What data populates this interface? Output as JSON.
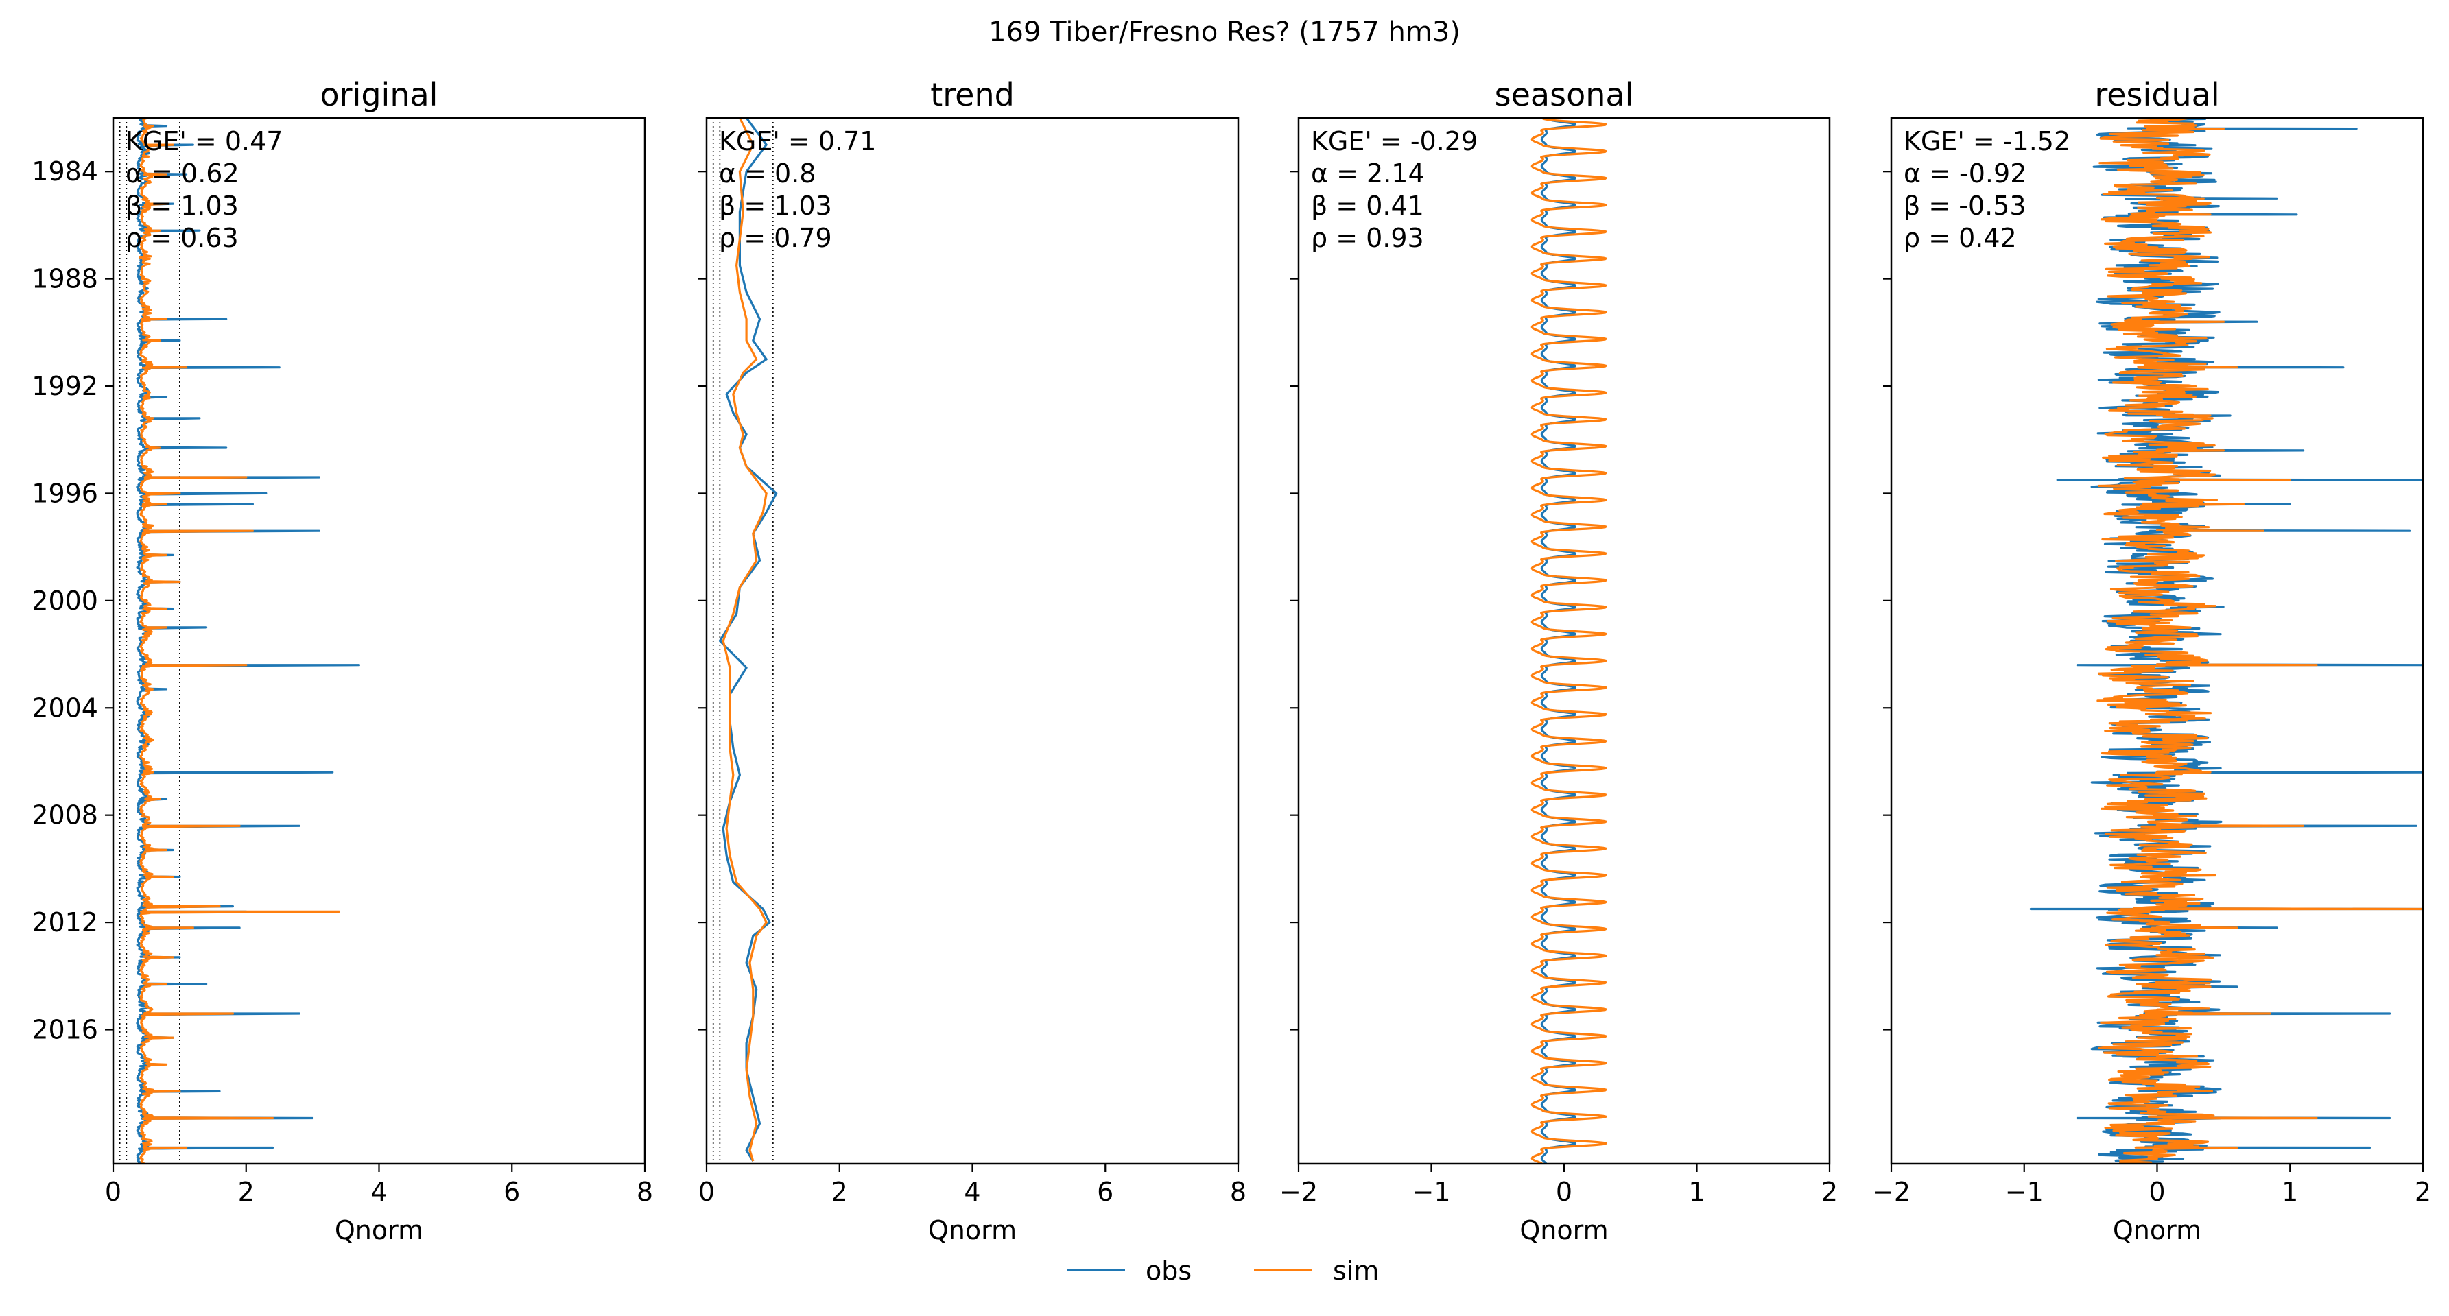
{
  "figure": {
    "suptitle": "169  Tiber/Fresno Res? (1757 hm3)",
    "legend": {
      "location": "bottom-center",
      "entries": [
        "obs",
        "sim"
      ]
    },
    "colors": {
      "obs": "#1f77b4",
      "sim": "#ff7f0e",
      "axes": "#000000"
    }
  },
  "chart_data": [
    {
      "type": "line",
      "title": "original",
      "xlabel": "Qnorm",
      "ylabel": "",
      "xlim": [
        0,
        8
      ],
      "xticks": [
        0,
        2,
        4,
        6,
        8
      ],
      "xtick_labels": [
        "0",
        "2",
        "4",
        "6",
        "8"
      ],
      "ylim": [
        "1982-01-01",
        "2020-12-31"
      ],
      "yticks": [
        1984,
        1988,
        1992,
        1996,
        2000,
        2004,
        2008,
        2012,
        2016
      ],
      "ytick_labels": [
        "1984",
        "1988",
        "1992",
        "1996",
        "2000",
        "2004",
        "2008",
        "2012",
        "2016"
      ],
      "yaxis_inverted": true,
      "reference_lines_x": [
        0.1,
        0.2,
        1.0
      ],
      "stats": [
        "KGE' = 0.47",
        "α = 0.62",
        "β = 1.03",
        "ρ = 0.63"
      ],
      "series": [
        {
          "name": "obs",
          "peaks": [
            [
              1982.3,
              0.8
            ],
            [
              1983.0,
              1.2
            ],
            [
              1984.1,
              1.1
            ],
            [
              1985.2,
              0.9
            ],
            [
              1986.2,
              1.3
            ],
            [
              1987.2,
              0.5
            ],
            [
              1989.5,
              1.7
            ],
            [
              1990.3,
              1.0
            ],
            [
              1991.3,
              2.5
            ],
            [
              1992.4,
              0.8
            ],
            [
              1993.2,
              1.3
            ],
            [
              1994.3,
              1.7
            ],
            [
              1995.4,
              3.1
            ],
            [
              1996.0,
              2.3
            ],
            [
              1996.4,
              2.1
            ],
            [
              1997.4,
              3.1
            ],
            [
              1998.3,
              0.9
            ],
            [
              1999.3,
              1.0
            ],
            [
              2000.3,
              0.9
            ],
            [
              2001.0,
              1.4
            ],
            [
              2002.4,
              3.7
            ],
            [
              2003.3,
              0.8
            ],
            [
              2004.2,
              0.5
            ],
            [
              2005.2,
              0.6
            ],
            [
              2006.4,
              3.3
            ],
            [
              2007.4,
              0.8
            ],
            [
              2008.4,
              2.8
            ],
            [
              2009.3,
              0.9
            ],
            [
              2010.3,
              1.0
            ],
            [
              2011.4,
              1.8
            ],
            [
              2011.6,
              2.0
            ],
            [
              2012.2,
              1.9
            ],
            [
              2013.3,
              1.0
            ],
            [
              2014.3,
              1.4
            ],
            [
              2015.4,
              2.8
            ],
            [
              2016.3,
              0.9
            ],
            [
              2017.3,
              0.7
            ],
            [
              2018.3,
              1.6
            ],
            [
              2019.3,
              3.0
            ],
            [
              2020.4,
              2.4
            ]
          ]
        },
        {
          "name": "sim",
          "peaks": [
            [
              1982.3,
              0.6
            ],
            [
              1983.0,
              0.9
            ],
            [
              1984.1,
              0.8
            ],
            [
              1985.2,
              0.8
            ],
            [
              1986.2,
              0.7
            ],
            [
              1987.2,
              0.4
            ],
            [
              1989.5,
              0.8
            ],
            [
              1990.3,
              0.7
            ],
            [
              1991.3,
              1.1
            ],
            [
              1992.4,
              0.5
            ],
            [
              1993.2,
              0.6
            ],
            [
              1994.3,
              0.7
            ],
            [
              1995.4,
              2.0
            ],
            [
              1996.0,
              1.0
            ],
            [
              1996.4,
              0.8
            ],
            [
              1997.4,
              2.1
            ],
            [
              1998.3,
              0.8
            ],
            [
              1999.3,
              1.0
            ],
            [
              2000.3,
              0.8
            ],
            [
              2001.0,
              0.8
            ],
            [
              2002.4,
              2.0
            ],
            [
              2003.3,
              0.6
            ],
            [
              2004.2,
              0.5
            ],
            [
              2005.2,
              0.6
            ],
            [
              2006.4,
              0.6
            ],
            [
              2007.4,
              0.7
            ],
            [
              2008.4,
              1.9
            ],
            [
              2009.3,
              0.8
            ],
            [
              2010.3,
              0.9
            ],
            [
              2011.4,
              1.6
            ],
            [
              2011.6,
              3.4
            ],
            [
              2012.2,
              1.2
            ],
            [
              2013.3,
              0.9
            ],
            [
              2014.3,
              0.8
            ],
            [
              2015.4,
              1.8
            ],
            [
              2016.3,
              0.9
            ],
            [
              2017.3,
              0.8
            ],
            [
              2018.3,
              1.0
            ],
            [
              2019.3,
              2.4
            ],
            [
              2020.4,
              1.1
            ]
          ]
        }
      ]
    },
    {
      "type": "line",
      "title": "trend",
      "xlabel": "Qnorm",
      "ylabel": "",
      "xlim": [
        0,
        8
      ],
      "xticks": [
        0,
        2,
        4,
        6,
        8
      ],
      "xtick_labels": [
        "0",
        "2",
        "4",
        "6",
        "8"
      ],
      "ylim": [
        "1982-01-01",
        "2020-12-31"
      ],
      "yaxis_inverted": true,
      "reference_lines_x": [
        0.1,
        0.2,
        1.0
      ],
      "stats": [
        "KGE' = 0.71",
        "α = 0.8",
        "β = 1.03",
        "ρ = 0.79"
      ],
      "series": [
        {
          "name": "obs",
          "points": [
            [
              1982.0,
              0.6
            ],
            [
              1983.0,
              0.9
            ],
            [
              1984.0,
              0.6
            ],
            [
              1985.5,
              0.5
            ],
            [
              1987.5,
              0.5
            ],
            [
              1988.5,
              0.6
            ],
            [
              1989.5,
              0.8
            ],
            [
              1990.3,
              0.7
            ],
            [
              1991.0,
              0.9
            ],
            [
              1991.5,
              0.6
            ],
            [
              1992.3,
              0.3
            ],
            [
              1993.0,
              0.4
            ],
            [
              1993.8,
              0.6
            ],
            [
              1994.3,
              0.5
            ],
            [
              1995.0,
              0.6
            ],
            [
              1996.0,
              1.05
            ],
            [
              1996.7,
              0.9
            ],
            [
              1997.5,
              0.7
            ],
            [
              1998.5,
              0.8
            ],
            [
              1999.5,
              0.5
            ],
            [
              2000.5,
              0.45
            ],
            [
              2001.5,
              0.2
            ],
            [
              2002.5,
              0.6
            ],
            [
              2003.5,
              0.35
            ],
            [
              2004.5,
              0.35
            ],
            [
              2005.5,
              0.4
            ],
            [
              2006.5,
              0.5
            ],
            [
              2007.5,
              0.35
            ],
            [
              2008.5,
              0.25
            ],
            [
              2009.5,
              0.3
            ],
            [
              2010.5,
              0.4
            ],
            [
              2011.5,
              0.85
            ],
            [
              2012.0,
              0.95
            ],
            [
              2012.5,
              0.7
            ],
            [
              2013.5,
              0.6
            ],
            [
              2014.5,
              0.75
            ],
            [
              2015.5,
              0.7
            ],
            [
              2016.5,
              0.6
            ],
            [
              2017.5,
              0.6
            ],
            [
              2018.5,
              0.7
            ],
            [
              2019.5,
              0.8
            ],
            [
              2020.5,
              0.6
            ],
            [
              2020.9,
              0.7
            ]
          ]
        },
        {
          "name": "sim",
          "points": [
            [
              1982.0,
              0.5
            ],
            [
              1983.0,
              0.7
            ],
            [
              1984.0,
              0.5
            ],
            [
              1985.5,
              0.55
            ],
            [
              1987.5,
              0.45
            ],
            [
              1988.5,
              0.5
            ],
            [
              1989.5,
              0.6
            ],
            [
              1990.3,
              0.6
            ],
            [
              1991.0,
              0.75
            ],
            [
              1991.5,
              0.55
            ],
            [
              1992.3,
              0.4
            ],
            [
              1993.0,
              0.45
            ],
            [
              1993.8,
              0.55
            ],
            [
              1994.3,
              0.5
            ],
            [
              1995.0,
              0.6
            ],
            [
              1996.0,
              0.9
            ],
            [
              1996.7,
              0.85
            ],
            [
              1997.5,
              0.7
            ],
            [
              1998.5,
              0.75
            ],
            [
              1999.5,
              0.5
            ],
            [
              2000.5,
              0.4
            ],
            [
              2001.5,
              0.25
            ],
            [
              2002.5,
              0.35
            ],
            [
              2003.5,
              0.35
            ],
            [
              2004.5,
              0.35
            ],
            [
              2005.5,
              0.35
            ],
            [
              2006.5,
              0.4
            ],
            [
              2007.5,
              0.35
            ],
            [
              2008.5,
              0.3
            ],
            [
              2009.5,
              0.35
            ],
            [
              2010.5,
              0.45
            ],
            [
              2011.5,
              0.8
            ],
            [
              2012.0,
              0.9
            ],
            [
              2012.5,
              0.75
            ],
            [
              2013.5,
              0.65
            ],
            [
              2014.5,
              0.7
            ],
            [
              2015.5,
              0.7
            ],
            [
              2016.5,
              0.65
            ],
            [
              2017.5,
              0.6
            ],
            [
              2018.5,
              0.65
            ],
            [
              2019.5,
              0.75
            ],
            [
              2020.5,
              0.65
            ],
            [
              2020.9,
              0.7
            ]
          ]
        }
      ]
    },
    {
      "type": "line",
      "title": "seasonal",
      "xlabel": "Qnorm",
      "ylabel": "",
      "xlim": [
        -2,
        2
      ],
      "xticks": [
        -2,
        -1,
        0,
        1,
        2
      ],
      "xtick_labels": [
        "−2",
        "−1",
        "0",
        "1",
        "2"
      ],
      "ylim": [
        "1982-01-01",
        "2020-12-31"
      ],
      "yaxis_inverted": true,
      "stats": [
        "KGE' = -0.29",
        "α = 2.14",
        "β = 0.41",
        "ρ = 0.93"
      ],
      "series": [
        {
          "name": "obs",
          "annual_cycle": {
            "min": -0.15,
            "max": 0.1
          }
        },
        {
          "name": "sim",
          "annual_cycle": {
            "min": -0.2,
            "max": 0.35
          }
        }
      ]
    },
    {
      "type": "line",
      "title": "residual",
      "xlabel": "Qnorm",
      "ylabel": "",
      "xlim": [
        -2,
        2
      ],
      "xticks": [
        -2,
        -1,
        0,
        1,
        2
      ],
      "xtick_labels": [
        "−2",
        "−1",
        "0",
        "1",
        "2"
      ],
      "ylim": [
        "1982-01-01",
        "2020-12-31"
      ],
      "yaxis_inverted": true,
      "stats": [
        "KGE' = -1.52",
        "α = -0.92",
        "β = -0.53",
        "ρ = 0.42"
      ],
      "series": [
        {
          "name": "obs",
          "peaks": [
            [
              1982.4,
              1.5
            ],
            [
              1985.0,
              0.9
            ],
            [
              1985.6,
              1.05
            ],
            [
              1989.6,
              0.75
            ],
            [
              1991.3,
              1.4
            ],
            [
              1993.1,
              0.55
            ],
            [
              1994.4,
              1.1
            ],
            [
              1995.5,
              2.0
            ],
            [
              1995.5,
              -0.75
            ],
            [
              1996.4,
              1.0
            ],
            [
              1997.4,
              1.9
            ],
            [
              2002.4,
              2.0
            ],
            [
              2002.4,
              -0.6
            ],
            [
              2006.4,
              2.0
            ],
            [
              2008.4,
              1.95
            ],
            [
              2011.5,
              2.0
            ],
            [
              2011.5,
              -0.95
            ],
            [
              2012.2,
              0.9
            ],
            [
              2014.4,
              0.6
            ],
            [
              2015.4,
              1.75
            ],
            [
              2017.0,
              0.35
            ],
            [
              2019.3,
              1.75
            ],
            [
              2019.3,
              -0.6
            ],
            [
              2020.4,
              1.6
            ]
          ]
        },
        {
          "name": "sim",
          "peaks": [
            [
              1982.4,
              0.5
            ],
            [
              1985.0,
              0.35
            ],
            [
              1985.6,
              0.4
            ],
            [
              1989.6,
              0.5
            ],
            [
              1991.3,
              0.6
            ],
            [
              1993.1,
              0.4
            ],
            [
              1994.4,
              0.5
            ],
            [
              1995.5,
              1.0
            ],
            [
              1996.4,
              0.65
            ],
            [
              1997.4,
              0.8
            ],
            [
              2002.4,
              1.2
            ],
            [
              2006.4,
              0.4
            ],
            [
              2008.4,
              1.1
            ],
            [
              2011.5,
              2.0
            ],
            [
              2012.2,
              0.6
            ],
            [
              2014.4,
              0.4
            ],
            [
              2015.4,
              0.85
            ],
            [
              2017.0,
              0.3
            ],
            [
              2019.3,
              1.2
            ],
            [
              2020.4,
              0.6
            ]
          ]
        }
      ]
    }
  ]
}
